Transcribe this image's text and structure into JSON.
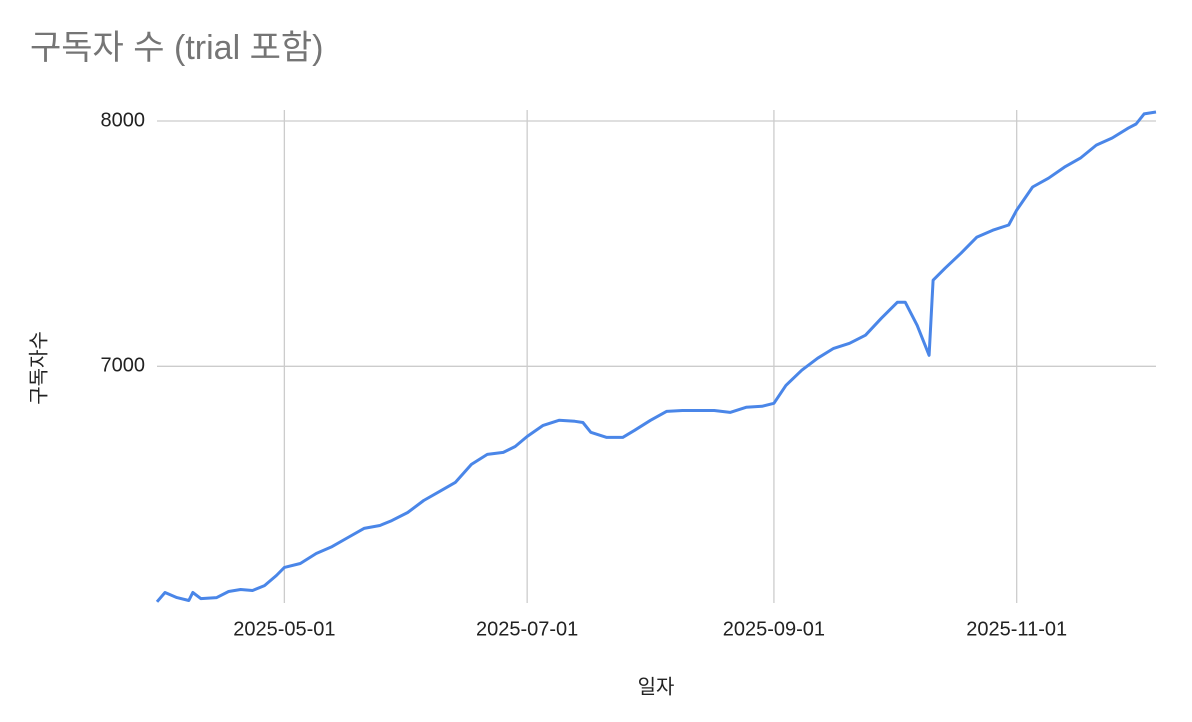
{
  "chart_data": {
    "type": "line",
    "title": "구독자 수 (trial 포함)",
    "x_label": "일자",
    "y_label": "구독자수",
    "x": [
      "2025-03-30",
      "2025-04-01",
      "2025-04-04",
      "2025-04-07",
      "2025-04-08",
      "2025-04-10",
      "2025-04-14",
      "2025-04-17",
      "2025-04-20",
      "2025-04-23",
      "2025-04-26",
      "2025-04-29",
      "2025-05-01",
      "2025-05-05",
      "2025-05-09",
      "2025-05-13",
      "2025-05-17",
      "2025-05-21",
      "2025-05-25",
      "2025-05-28",
      "2025-06-01",
      "2025-06-05",
      "2025-06-09",
      "2025-06-13",
      "2025-06-17",
      "2025-06-21",
      "2025-06-25",
      "2025-06-28",
      "2025-07-01",
      "2025-07-05",
      "2025-07-09",
      "2025-07-13",
      "2025-07-15",
      "2025-07-17",
      "2025-07-21",
      "2025-07-25",
      "2025-07-28",
      "2025-08-01",
      "2025-08-05",
      "2025-08-09",
      "2025-08-13",
      "2025-08-17",
      "2025-08-21",
      "2025-08-25",
      "2025-08-29",
      "2025-09-01",
      "2025-09-04",
      "2025-09-08",
      "2025-09-12",
      "2025-09-16",
      "2025-09-20",
      "2025-09-24",
      "2025-09-28",
      "2025-10-02",
      "2025-10-04",
      "2025-10-07",
      "2025-10-10",
      "2025-10-11",
      "2025-10-14",
      "2025-10-18",
      "2025-10-22",
      "2025-10-26",
      "2025-10-30",
      "2025-11-01",
      "2025-11-05",
      "2025-11-09",
      "2025-11-13",
      "2025-11-17",
      "2025-11-21",
      "2025-11-25",
      "2025-11-29",
      "2025-12-01",
      "2025-12-03",
      "2025-12-06"
    ],
    "series": [
      {
        "name": "구독자수",
        "color": "#4a86e8",
        "values": [
          6040,
          6078,
          6057,
          6045,
          6078,
          6053,
          6057,
          6082,
          6090,
          6086,
          6106,
          6147,
          6180,
          6196,
          6237,
          6265,
          6302,
          6339,
          6351,
          6371,
          6404,
          6453,
          6490,
          6527,
          6600,
          6641,
          6649,
          6673,
          6714,
          6759,
          6780,
          6776,
          6771,
          6731,
          6710,
          6710,
          6739,
          6780,
          6816,
          6820,
          6820,
          6820,
          6812,
          6833,
          6837,
          6849,
          6922,
          6984,
          7033,
          7073,
          7094,
          7127,
          7196,
          7261,
          7261,
          7167,
          7045,
          7351,
          7400,
          7461,
          7527,
          7555,
          7576,
          7637,
          7731,
          7767,
          7812,
          7849,
          7902,
          7931,
          7971,
          7988,
          8029,
          8037
        ]
      }
    ],
    "xlim": [
      "2025-03-30",
      "2025-12-06"
    ],
    "xticks": [
      "2025-05-01",
      "2025-07-01",
      "2025-09-01",
      "2025-11-01"
    ],
    "ylim": [
      6035,
      8045
    ],
    "yticks": [
      7000,
      8000
    ],
    "grid": true
  }
}
